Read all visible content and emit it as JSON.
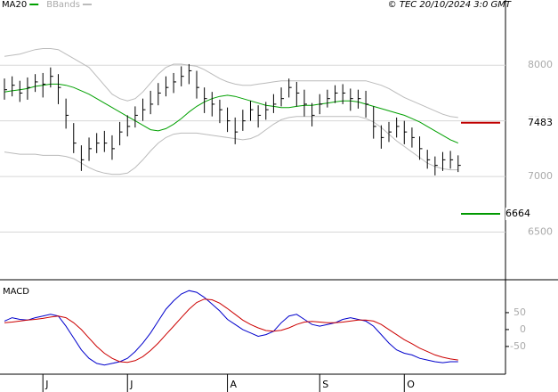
{
  "chart_data": [
    {
      "type": "ohlc",
      "annotation": "© TEC 20/10/2024 3:0 GMT",
      "color": "#000000",
      "high": [
        7880,
        7900,
        7860,
        7890,
        7920,
        7930,
        7980,
        7920,
        7700,
        7480,
        7280,
        7350,
        7390,
        7410,
        7370,
        7490,
        7550,
        7630,
        7700,
        7770,
        7840,
        7900,
        7930,
        7990,
        8010,
        7950,
        7800,
        7760,
        7690,
        7620,
        7530,
        7600,
        7680,
        7640,
        7670,
        7740,
        7800,
        7880,
        7850,
        7780,
        7660,
        7740,
        7780,
        7820,
        7830,
        7790,
        7780,
        7770,
        7630,
        7460,
        7490,
        7530,
        7500,
        7440,
        7360,
        7240,
        7180,
        7220,
        7230,
        7190
      ],
      "low": [
        7690,
        7720,
        7670,
        7690,
        7760,
        7710,
        7800,
        7650,
        7430,
        7210,
        7050,
        7140,
        7210,
        7220,
        7150,
        7280,
        7360,
        7440,
        7500,
        7560,
        7640,
        7720,
        7750,
        7810,
        7830,
        7700,
        7570,
        7540,
        7480,
        7400,
        7290,
        7410,
        7500,
        7440,
        7510,
        7570,
        7630,
        7710,
        7630,
        7540,
        7450,
        7560,
        7620,
        7660,
        7650,
        7590,
        7610,
        7530,
        7340,
        7250,
        7310,
        7350,
        7290,
        7260,
        7150,
        7070,
        7010,
        7050,
        7070,
        7040
      ],
      "close": [
        7780,
        7820,
        7750,
        7800,
        7850,
        7830,
        7900,
        7800,
        7550,
        7300,
        7150,
        7250,
        7300,
        7300,
        7250,
        7400,
        7450,
        7550,
        7600,
        7650,
        7750,
        7800,
        7850,
        7900,
        7950,
        7800,
        7700,
        7650,
        7600,
        7500,
        7400,
        7500,
        7600,
        7550,
        7600,
        7650,
        7700,
        7800,
        7750,
        7650,
        7550,
        7650,
        7700,
        7750,
        7750,
        7700,
        7700,
        7650,
        7450,
        7350,
        7400,
        7450,
        7400,
        7350,
        7250,
        7150,
        7100,
        7150,
        7150,
        7100
      ],
      "series": [
        {
          "name": "MA20",
          "color": "#00a000",
          "values": [
            7760,
            7770,
            7780,
            7790,
            7810,
            7820,
            7830,
            7830,
            7820,
            7800,
            7770,
            7740,
            7700,
            7660,
            7620,
            7580,
            7540,
            7500,
            7460,
            7420,
            7410,
            7430,
            7470,
            7520,
            7580,
            7630,
            7670,
            7700,
            7720,
            7730,
            7720,
            7700,
            7680,
            7660,
            7640,
            7630,
            7620,
            7620,
            7630,
            7640,
            7640,
            7650,
            7660,
            7670,
            7680,
            7680,
            7670,
            7650,
            7630,
            7610,
            7590,
            7570,
            7550,
            7520,
            7490,
            7450,
            7410,
            7370,
            7330,
            7300
          ]
        },
        {
          "name": "BBands",
          "color": "#bbbbbb",
          "upper": [
            8080,
            8090,
            8100,
            8120,
            8140,
            8150,
            8150,
            8140,
            8100,
            8060,
            8020,
            7980,
            7900,
            7820,
            7740,
            7700,
            7680,
            7700,
            7760,
            7840,
            7920,
            7980,
            8010,
            8010,
            8000,
            7990,
            7960,
            7920,
            7880,
            7850,
            7830,
            7820,
            7820,
            7830,
            7840,
            7850,
            7860,
            7860,
            7860,
            7860,
            7860,
            7860,
            7860,
            7860,
            7860,
            7860,
            7860,
            7860,
            7840,
            7820,
            7790,
            7750,
            7710,
            7680,
            7650,
            7620,
            7590,
            7560,
            7540,
            7530
          ],
          "lower": [
            7220,
            7210,
            7200,
            7200,
            7200,
            7190,
            7190,
            7190,
            7180,
            7160,
            7120,
            7080,
            7050,
            7030,
            7020,
            7020,
            7030,
            7080,
            7150,
            7230,
            7300,
            7350,
            7380,
            7390,
            7390,
            7390,
            7380,
            7370,
            7360,
            7350,
            7340,
            7330,
            7340,
            7370,
            7420,
            7470,
            7510,
            7530,
            7540,
            7540,
            7540,
            7540,
            7540,
            7540,
            7540,
            7540,
            7540,
            7520,
            7490,
            7440,
            7380,
            7320,
            7270,
            7220,
            7170,
            7120,
            7090,
            7070,
            7060,
            7060
          ]
        }
      ],
      "levels": [
        {
          "value": 7483,
          "color": "#c00000"
        },
        {
          "value": 6664,
          "color": "#009900"
        }
      ],
      "ylim": [
        6080,
        8490
      ],
      "yticks": [
        8000,
        7500,
        7000,
        6500
      ],
      "grid": true,
      "xticks": [
        {
          "value": 5,
          "label": "J"
        },
        {
          "value": 16,
          "label": "J"
        },
        {
          "value": 29,
          "label": "A"
        },
        {
          "value": 41,
          "label": "S"
        },
        {
          "value": 52,
          "label": "O"
        }
      ]
    },
    {
      "type": "line",
      "title": "MACD",
      "series": [
        {
          "color": "#0000cc",
          "values": [
            25,
            35,
            30,
            28,
            35,
            40,
            45,
            40,
            10,
            -25,
            -60,
            -85,
            -100,
            -105,
            -100,
            -95,
            -85,
            -65,
            -40,
            -10,
            25,
            60,
            85,
            105,
            115,
            110,
            95,
            75,
            55,
            30,
            15,
            0,
            -10,
            -20,
            -15,
            -5,
            20,
            40,
            45,
            30,
            15,
            10,
            15,
            20,
            30,
            35,
            30,
            25,
            10,
            -15,
            -40,
            -60,
            -70,
            -75,
            -85,
            -90,
            -95,
            -98,
            -95,
            -95
          ]
        },
        {
          "color": "#cc0000",
          "values": [
            20,
            22,
            25,
            28,
            30,
            33,
            37,
            40,
            35,
            20,
            0,
            -25,
            -50,
            -70,
            -85,
            -95,
            -97,
            -92,
            -80,
            -62,
            -40,
            -15,
            10,
            35,
            60,
            80,
            90,
            88,
            78,
            62,
            45,
            28,
            15,
            5,
            -3,
            -5,
            -2,
            5,
            15,
            22,
            24,
            22,
            20,
            20,
            22,
            25,
            28,
            28,
            25,
            15,
            0,
            -15,
            -30,
            -42,
            -55,
            -65,
            -75,
            -82,
            -87,
            -90
          ]
        }
      ],
      "ylim": [
        -132,
        142
      ],
      "yticks": [
        50,
        0,
        -50
      ]
    }
  ]
}
